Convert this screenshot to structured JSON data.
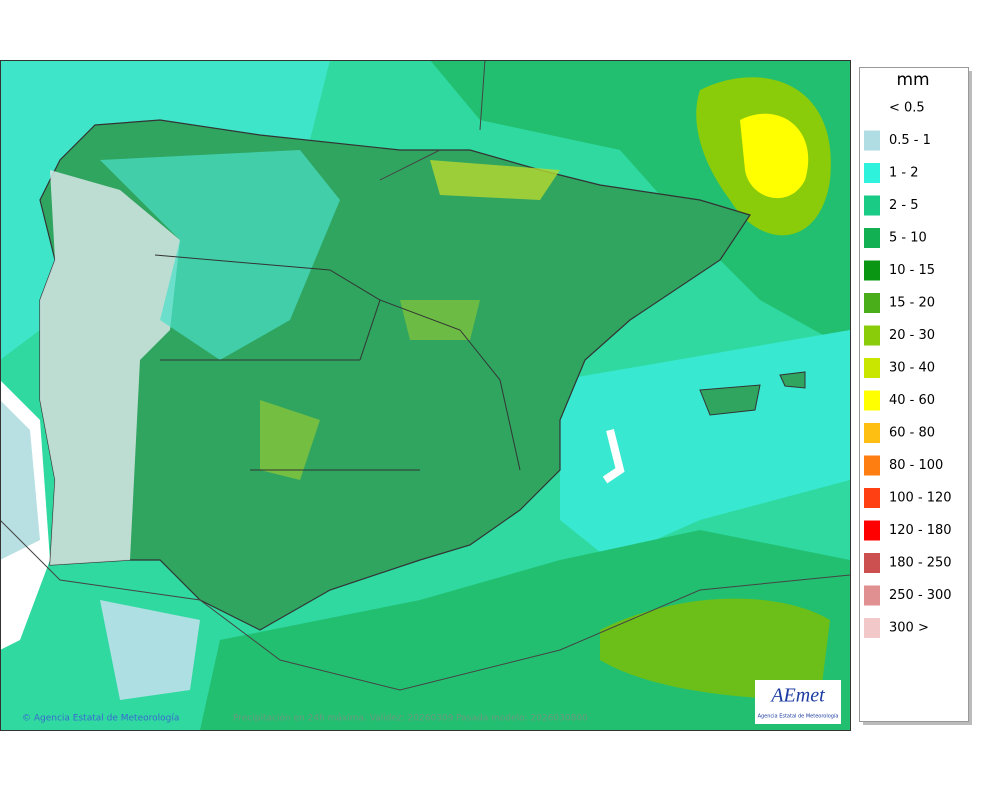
{
  "legend": {
    "title": "mm",
    "items": [
      {
        "label": "< 0.5",
        "color": null
      },
      {
        "label": "0.5 - 1",
        "color": "#b0dde3"
      },
      {
        "label": "1 - 2",
        "color": "#2ef2dc"
      },
      {
        "label": "2 - 5",
        "color": "#1acb86"
      },
      {
        "label": "5 - 10",
        "color": "#12b052"
      },
      {
        "label": "10 - 15",
        "color": "#0a9612"
      },
      {
        "label": "15 - 20",
        "color": "#4aae1a"
      },
      {
        "label": "20 - 30",
        "color": "#8acb0a"
      },
      {
        "label": "30 - 40",
        "color": "#c8e600"
      },
      {
        "label": "40 - 60",
        "color": "#ffff00"
      },
      {
        "label": "60 - 80",
        "color": "#ffbe12"
      },
      {
        "label": "80 - 100",
        "color": "#ff7e12"
      },
      {
        "label": "100 - 120",
        "color": "#ff4012"
      },
      {
        "label": "120 - 180",
        "color": "#ff0000"
      },
      {
        "label": "180 - 250",
        "color": "#cc5050"
      },
      {
        "label": "250 - 300",
        "color": "#e09090"
      },
      {
        "label": "300 >",
        "color": "#f2c8c8"
      }
    ]
  },
  "footer": {
    "credit": "© Agencia Estatal de Meteorología",
    "caption": "Precipitación en 24h máxima. Validez: 20260309 Pasada modelo: 2026030800"
  },
  "logo": {
    "name": "AEmet",
    "subtitle": "Agencia Estatal de Meteorología"
  }
}
